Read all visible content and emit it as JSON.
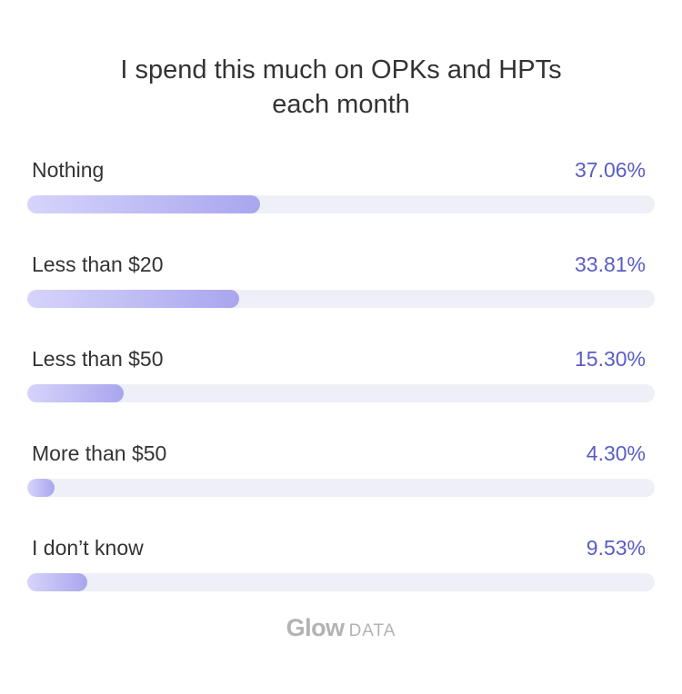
{
  "chart_data": {
    "type": "bar",
    "orientation": "horizontal",
    "title_lines": [
      "I spend this much on OPKs and HPTs",
      "each month"
    ],
    "categories": [
      "Nothing",
      "Less than $20",
      "Less than $50",
      "More than $50",
      "I don’t know"
    ],
    "values": [
      37.06,
      33.81,
      15.3,
      4.3,
      9.53
    ],
    "value_labels": [
      "37.06%",
      "33.81%",
      "15.30%",
      "4.30%",
      "9.53%"
    ],
    "xlim": [
      0,
      100
    ],
    "unit": "%",
    "grid": false,
    "legend": "none",
    "colors": {
      "bar_start": "#d6d4fb",
      "bar_end": "#a9a6ee",
      "track": "#efeff8",
      "value_text": "#5a5dc4"
    }
  },
  "footer": {
    "brand": "Glow",
    "suffix": "DATA"
  }
}
